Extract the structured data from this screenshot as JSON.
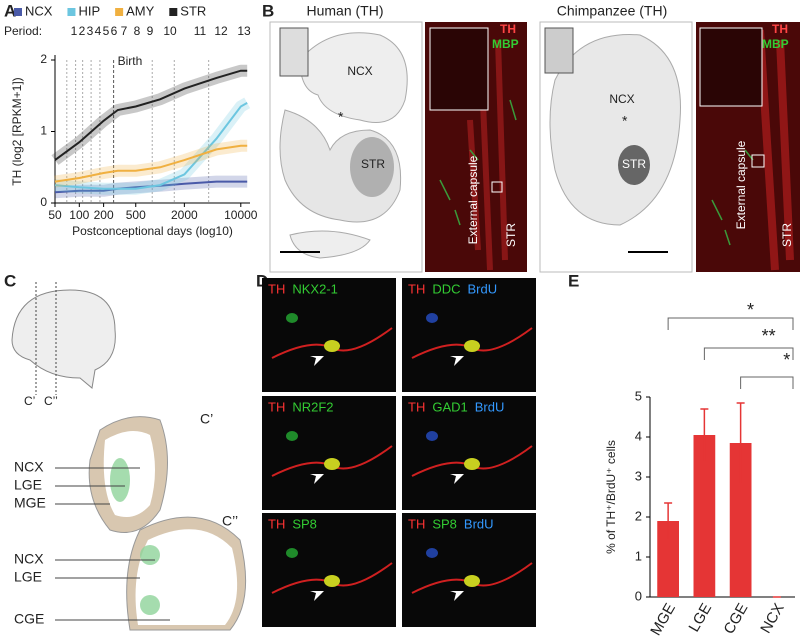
{
  "chart_data": [
    {
      "type": "line",
      "label": "A",
      "x": [
        50,
        100,
        200,
        300,
        500,
        1000,
        2000,
        5000,
        10000,
        12000
      ],
      "series": [
        {
          "name": "NCX",
          "color": "#4a5aa8",
          "values": [
            0.15,
            0.17,
            0.17,
            0.2,
            0.22,
            0.24,
            0.27,
            0.3,
            0.3,
            0.3
          ]
        },
        {
          "name": "HIP",
          "color": "#6cc6e0",
          "values": [
            0.25,
            0.22,
            0.2,
            0.2,
            0.2,
            0.25,
            0.4,
            0.9,
            1.35,
            1.4
          ]
        },
        {
          "name": "AMY",
          "color": "#f0b040",
          "values": [
            0.3,
            0.35,
            0.42,
            0.45,
            0.45,
            0.5,
            0.6,
            0.75,
            0.8,
            0.8
          ]
        },
        {
          "name": "STR",
          "color": "#222222",
          "values": [
            0.6,
            0.85,
            1.15,
            1.3,
            1.35,
            1.45,
            1.6,
            1.75,
            1.85,
            1.85
          ]
        }
      ],
      "log_x": true,
      "xlim": [
        50,
        13000
      ],
      "xticks": [
        50,
        100,
        200,
        500,
        2000,
        10000
      ],
      "ylim": [
        0,
        2
      ],
      "yticks": [
        0,
        1,
        2
      ],
      "x_label": "Postconceptional days (log10)",
      "y_label": "TH (log2 [RPKM+1])",
      "period_label": "Period:",
      "periods": [
        "1",
        "2",
        "3",
        "4",
        "5",
        "6",
        "7",
        "8",
        "9",
        "10",
        "11",
        "12",
        "13"
      ],
      "annotation": "Birth",
      "legend": "top"
    },
    {
      "type": "bar",
      "label": "E",
      "categories": [
        "MGE",
        "LGE",
        "CGE",
        "NCX"
      ],
      "values": [
        1.9,
        4.05,
        3.85,
        0
      ],
      "errors": [
        0.45,
        0.65,
        1.0,
        0
      ],
      "color": "#e53535",
      "ylim": [
        0,
        5
      ],
      "yticks": [
        0,
        1,
        2,
        3,
        4,
        5
      ],
      "y_label": "% of TH⁺/BrdU⁺ cells",
      "significance": [
        "*",
        "**",
        "*"
      ]
    }
  ],
  "panel_B": {
    "label": "B",
    "human": {
      "title": "Human (TH)",
      "region_ncx": "NCX",
      "region_str": "STR",
      "asterisk": "*",
      "stain_th": "TH",
      "stain_mbp": "MBP",
      "capsule": "External capsule",
      "inset_str": "STR"
    },
    "chimpanzee": {
      "title": "Chimpanzee (TH)",
      "region_ncx": "NCX",
      "region_str": "STR",
      "asterisk": "*",
      "stain_th": "TH",
      "stain_mbp": "MBP",
      "capsule": "External capsule",
      "inset_str": "STR"
    }
  },
  "panel_C": {
    "label": "C",
    "section_1": "C’",
    "section_2": "C’’",
    "upper": {
      "title": "C’",
      "labels": [
        "NCX",
        "LGE",
        "MGE"
      ]
    },
    "lower": {
      "title": "C’’",
      "labels": [
        "NCX",
        "LGE",
        "CGE"
      ]
    }
  },
  "panel_D": {
    "label": "D",
    "images": [
      [
        "TH",
        "NKX2-1"
      ],
      [
        "TH",
        "DDC",
        "BrdU"
      ],
      [
        "TH",
        "NR2F2"
      ],
      [
        "TH",
        "GAD1",
        "BrdU"
      ],
      [
        "TH",
        "SP8"
      ],
      [
        "TH",
        "SP8",
        "BrdU"
      ]
    ]
  }
}
